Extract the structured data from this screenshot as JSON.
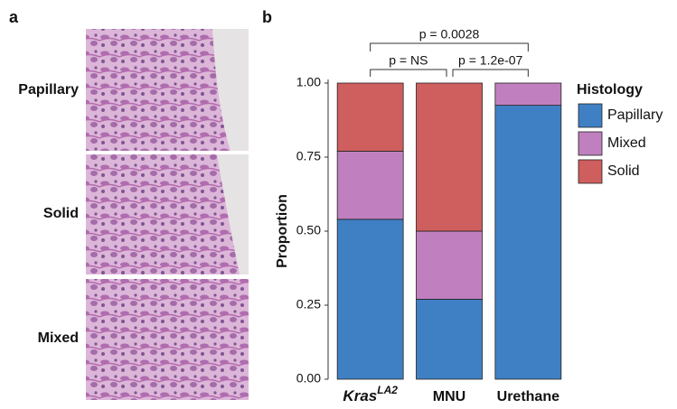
{
  "panel_a": {
    "label": "a",
    "images": [
      "Papillary",
      "Solid",
      "Mixed"
    ]
  },
  "panel_b": {
    "label": "b"
  },
  "chart_data": {
    "type": "stacked_bar",
    "categories": [
      {
        "text": "Kras",
        "superscript": "LA2"
      },
      "MNU",
      "Urethane"
    ],
    "series": [
      {
        "name": "Papillary",
        "color": "#3f80c4",
        "values": [
          0.54,
          0.27,
          0.925
        ]
      },
      {
        "name": "Mixed",
        "color": "#c080bf",
        "values": [
          0.23,
          0.23,
          0.075
        ]
      },
      {
        "name": "Solid",
        "color": "#cf5e5e",
        "values": [
          0.23,
          0.5,
          0
        ]
      }
    ],
    "y_label": "Proportion",
    "ylim": [
      0,
      1
    ],
    "yticks": [
      {
        "value": 0,
        "label": "0.00"
      },
      {
        "value": 0.25,
        "label": "0.25"
      },
      {
        "value": 0.5,
        "label": "0.50"
      },
      {
        "value": 0.75,
        "label": "0.75"
      },
      {
        "value": 1,
        "label": "1.00"
      }
    ],
    "legend_title": "Histology",
    "legend": "right",
    "comparisons": [
      {
        "label": "p = 0.0028",
        "from": 0,
        "to": 2
      },
      {
        "label": "p = NS",
        "from": 0,
        "to": 1
      },
      {
        "label": "p = 1.2e-07",
        "from": 1,
        "to": 2
      }
    ]
  }
}
